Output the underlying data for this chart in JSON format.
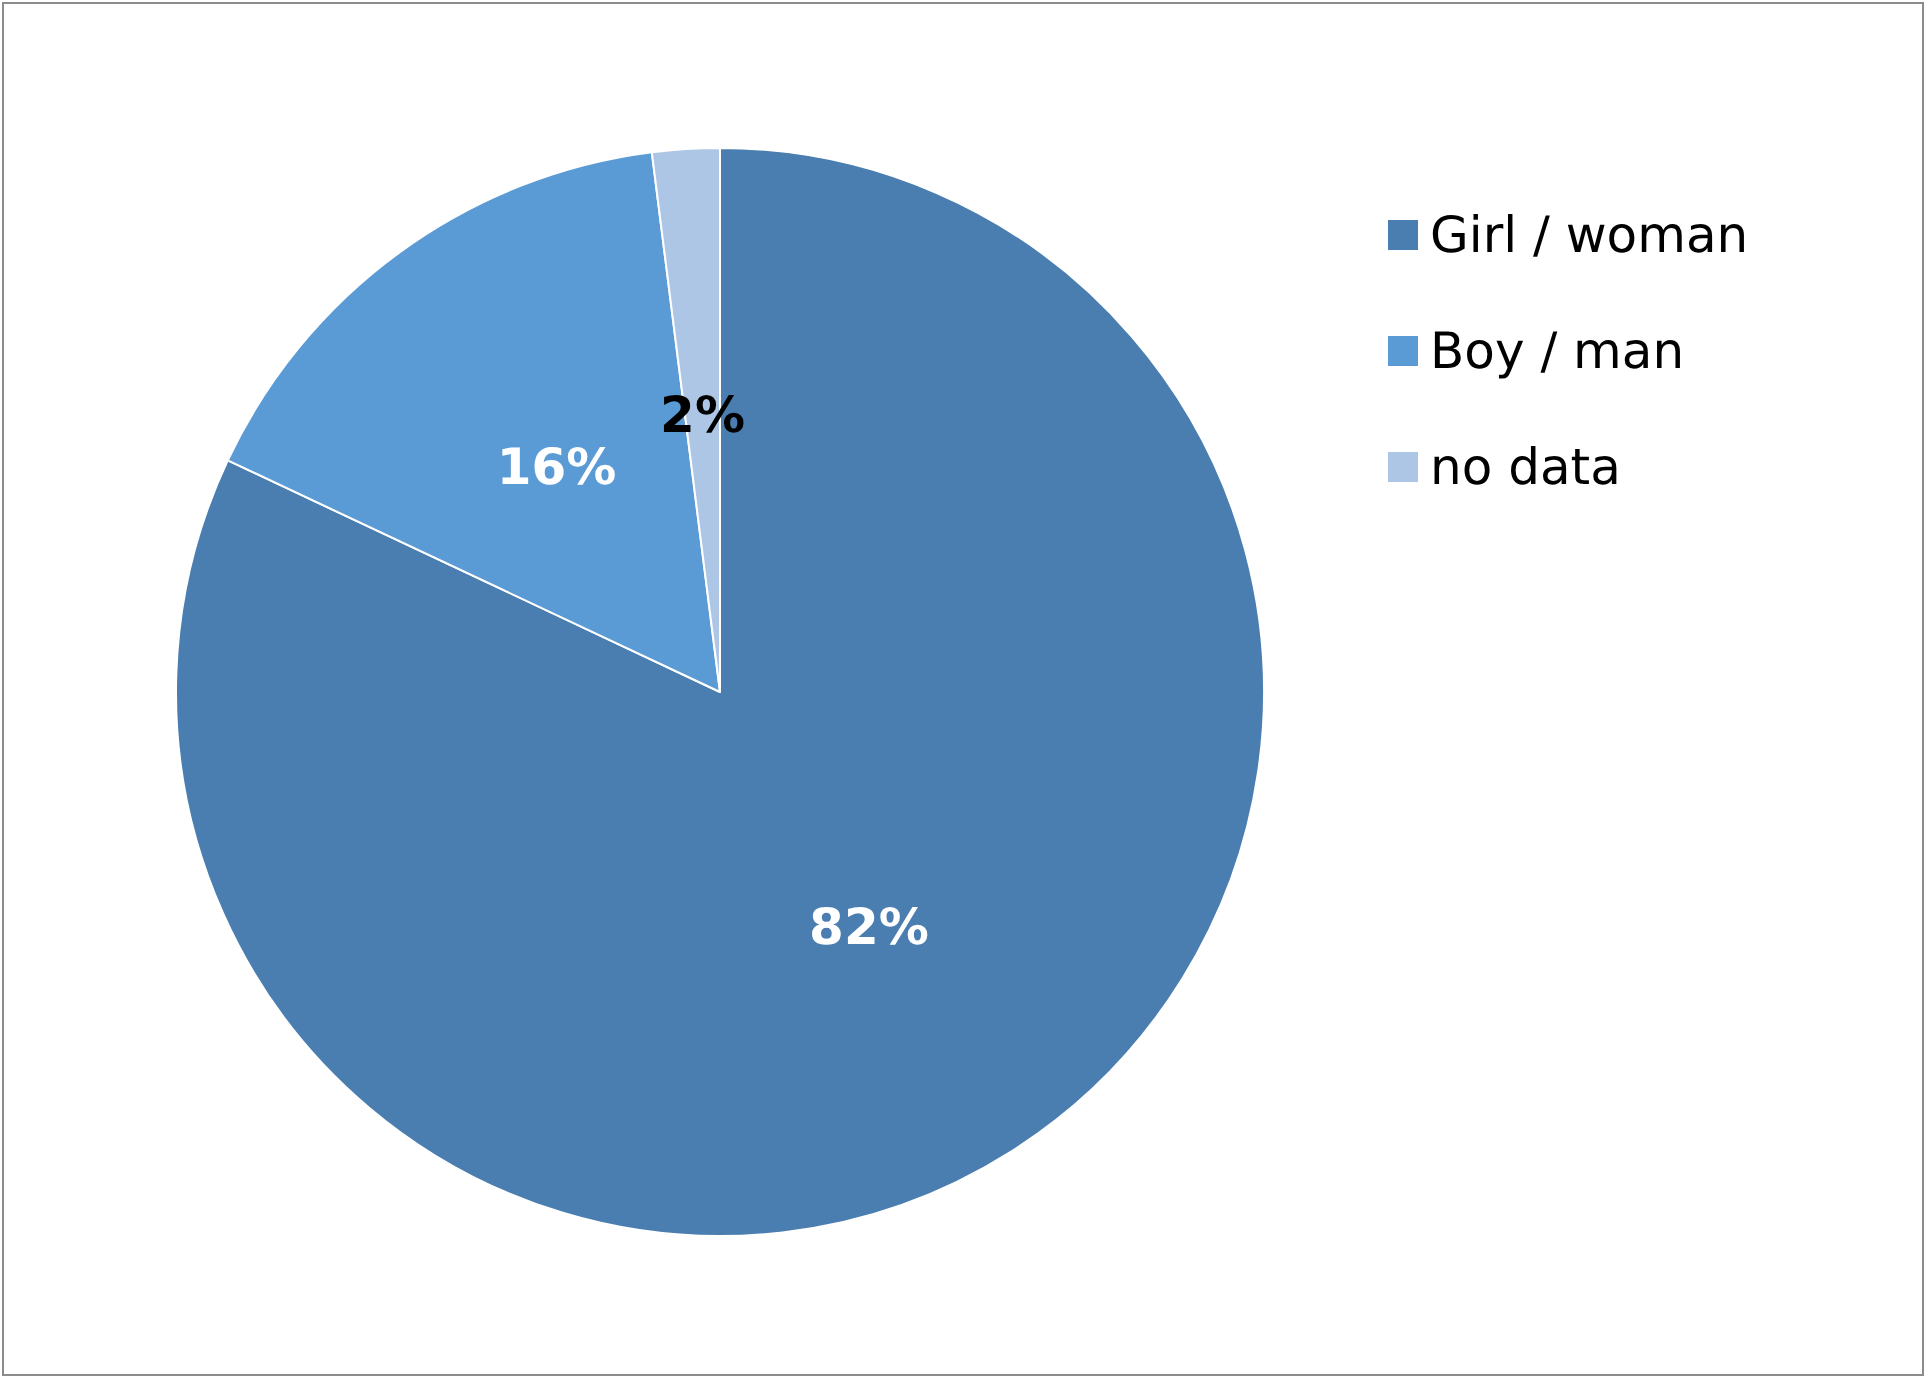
{
  "chart_data": {
    "type": "pie",
    "categories": [
      "Girl / woman",
      "Boy / man",
      "no data"
    ],
    "values": [
      82,
      16,
      2
    ],
    "colors": [
      "#4a7eb0",
      "#5b9bd5",
      "#adc6e5"
    ],
    "value_labels": [
      "82%",
      "16%",
      "2%"
    ],
    "legend": "top right"
  }
}
